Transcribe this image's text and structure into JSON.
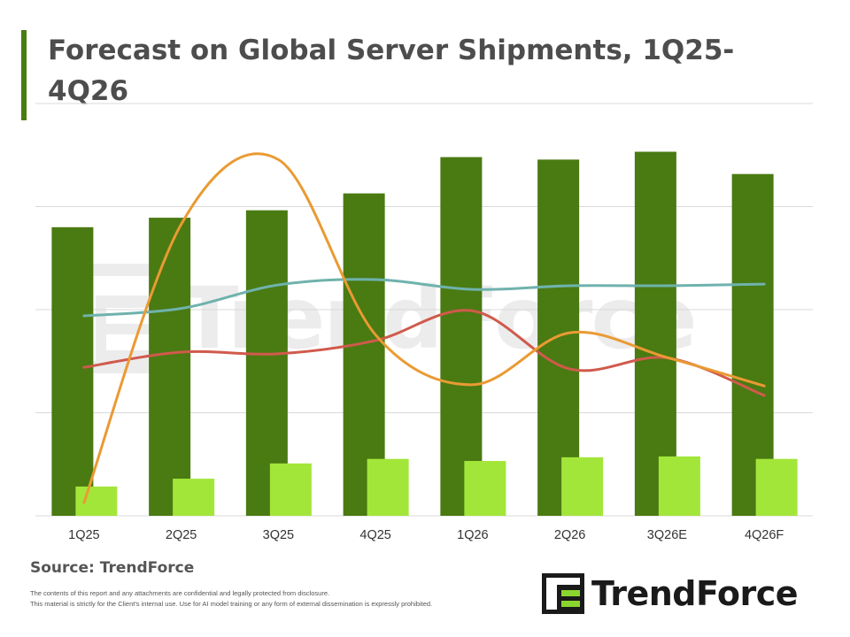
{
  "title": "Forecast on Global Server Shipments, 1Q25-4Q26",
  "source": "Source: TrendForce",
  "disclaimer": [
    "The contents of this report and any attachments are confidential and legally protected from disclosure.",
    "This material is strictly for the Client's internal use. Use for AI model training or any form of external dissemination is expressly prohibited."
  ],
  "brand": {
    "name": "TrendForce",
    "accent": "#4a7c12"
  },
  "colors": {
    "title_bar": "#4a7c12",
    "dark_bar": "#4a7a12",
    "light_bar": "#a3e63a",
    "teal_line": "#6fb2ad",
    "red_line": "#d05a4c",
    "orange_line": "#ea9a33",
    "grid": "#d9d9d9",
    "axis": "#d9d9d9"
  },
  "chart_data": {
    "type": "bar",
    "categories": [
      "1Q25",
      "2Q25",
      "3Q25",
      "4Q25",
      "1Q26",
      "2Q26",
      "3Q26E",
      "4Q26F"
    ],
    "ylim": [
      0,
      100
    ],
    "grid": true,
    "legend": "none",
    "series": [
      {
        "type": "bar",
        "color": "#4a7a12",
        "values": [
          70,
          72.3,
          74.1,
          78.2,
          87,
          86.4,
          88.3,
          82.9
        ]
      },
      {
        "type": "bar",
        "color": "#a3e63a",
        "values": [
          7.1,
          9,
          12.7,
          13.8,
          13.3,
          14.2,
          14.4,
          13.8
        ]
      },
      {
        "type": "line",
        "color": "#6fb2ad",
        "values": [
          48.5,
          50.3,
          56,
          57.3,
          54.9,
          55.8,
          55.8,
          56.2
        ]
      },
      {
        "type": "line",
        "color": "#d05a4c",
        "values": [
          36,
          39.7,
          39.3,
          42.5,
          49.7,
          35.6,
          38.3,
          29.2
        ]
      },
      {
        "type": "line",
        "color": "#ea9a33",
        "values": [
          3.2,
          70.7,
          86.4,
          43.9,
          31.8,
          44.4,
          38.4,
          31.5
        ]
      }
    ]
  }
}
